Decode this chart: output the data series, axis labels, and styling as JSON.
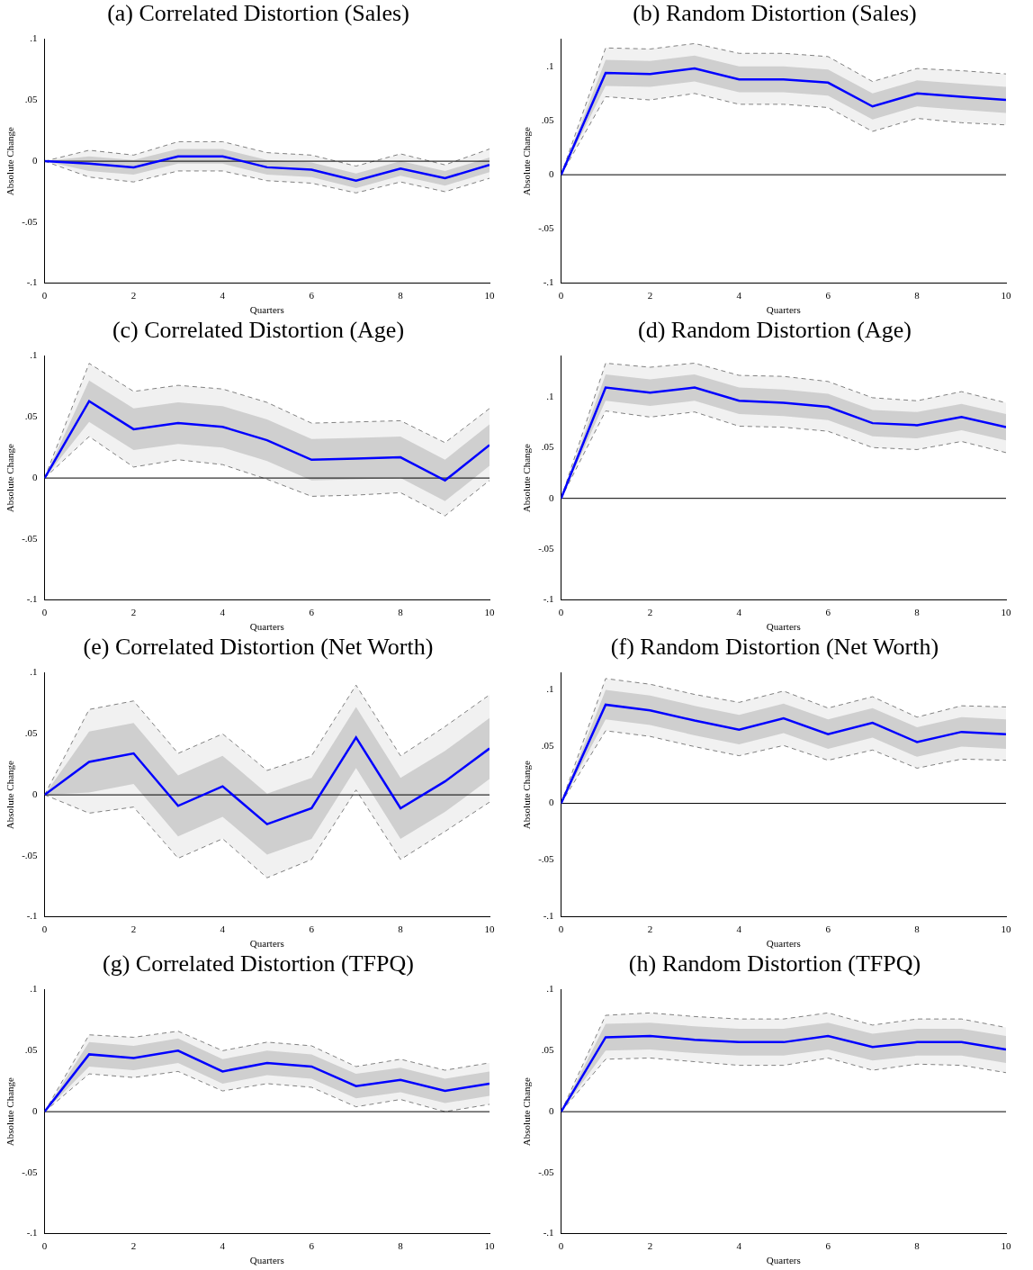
{
  "chart_data": [
    {
      "type": "line",
      "title": "(a) Correlated Distortion (Sales)",
      "xlabel": "Quarters",
      "ylabel": "Absolute Change",
      "x": [
        0,
        1,
        2,
        3,
        4,
        5,
        6,
        7,
        8,
        9,
        10
      ],
      "xlim": [
        0,
        10
      ],
      "xticks": [
        0,
        2,
        4,
        6,
        8,
        10
      ],
      "ylim": [
        -0.1,
        0.1
      ],
      "yticks": [
        {
          "value": -0.1,
          "label": "-.1"
        },
        {
          "value": -0.05,
          "label": "-.05"
        },
        {
          "value": 0,
          "label": "0"
        },
        {
          "value": 0.05,
          "label": ".05"
        },
        {
          "value": 0.1,
          "label": ".1"
        }
      ],
      "ref_lines": [
        {
          "axis": "y",
          "value": 0,
          "color": "#000000"
        }
      ],
      "series": [
        {
          "color": "#0000ff",
          "line_style": "solid",
          "values": [
            0,
            -0.002,
            -0.005,
            0.004,
            0.004,
            -0.005,
            -0.007,
            -0.016,
            -0.006,
            -0.014,
            -0.003
          ],
          "lower": [
            0,
            -0.008,
            -0.011,
            -0.002,
            -0.002,
            -0.011,
            -0.013,
            -0.022,
            -0.012,
            -0.02,
            -0.009
          ],
          "upper": [
            0,
            0.004,
            0.001,
            0.01,
            0.01,
            0.001,
            -0.001,
            -0.01,
            0,
            -0.008,
            0.003
          ]
        },
        {
          "color": "#f1f1f1",
          "values": [
            null,
            null,
            null,
            null,
            null,
            null,
            null,
            null,
            null,
            null,
            null
          ],
          "upper": [
            0,
            0.009,
            0.005,
            0.016,
            0.016,
            0.007,
            0.005,
            -0.004,
            0.006,
            -0.003,
            0.01
          ],
          "lower": [
            0,
            -0.013,
            -0.017,
            -0.008,
            -0.008,
            -0.016,
            -0.018,
            -0.026,
            -0.017,
            -0.025,
            -0.014
          ]
        },
        {
          "color": "#808080",
          "line_style": "dashed",
          "values": [
            0,
            0.009,
            0.005,
            0.016,
            0.016,
            0.007,
            0.005,
            -0.004,
            0.006,
            -0.003,
            0.01
          ]
        },
        {
          "color": "#808080",
          "line_style": "dashed",
          "values": [
            0,
            -0.013,
            -0.017,
            -0.008,
            -0.008,
            -0.016,
            -0.018,
            -0.026,
            -0.017,
            -0.025,
            -0.014
          ]
        }
      ]
    },
    {
      "type": "line",
      "title": "(b) Random Distortion (Sales)",
      "xlabel": "Quarters",
      "ylabel": "Absolute Change",
      "x": [
        0,
        1,
        2,
        3,
        4,
        5,
        6,
        7,
        8,
        9,
        10
      ],
      "xlim": [
        0,
        10
      ],
      "xticks": [
        0,
        2,
        4,
        6,
        8,
        10
      ],
      "ylim": [
        -0.1,
        0.125
      ],
      "yticks": [
        {
          "value": -0.1,
          "label": "-.1"
        },
        {
          "value": -0.05,
          "label": "-.05"
        },
        {
          "value": 0,
          "label": "0"
        },
        {
          "value": 0.05,
          "label": ".05"
        },
        {
          "value": 0.1,
          "label": ".1"
        }
      ],
      "ref_lines": [
        {
          "axis": "y",
          "value": 0,
          "color": "#000000"
        }
      ],
      "series": [
        {
          "color": "#0000ff",
          "line_style": "solid",
          "values": [
            0,
            0.094,
            0.093,
            0.098,
            0.088,
            0.088,
            0.085,
            0.063,
            0.075,
            0.072,
            0.069
          ],
          "lower": [
            0,
            0.082,
            0.081,
            0.086,
            0.076,
            0.076,
            0.073,
            0.051,
            0.063,
            0.06,
            0.057
          ],
          "upper": [
            0,
            0.106,
            0.105,
            0.11,
            0.1,
            0.1,
            0.097,
            0.075,
            0.087,
            0.084,
            0.081
          ]
        },
        {
          "color": "#f1f1f1",
          "values": [
            null,
            null,
            null,
            null,
            null,
            null,
            null,
            null,
            null,
            null,
            null
          ],
          "upper": [
            0,
            0.117,
            0.116,
            0.121,
            0.112,
            0.112,
            0.109,
            0.086,
            0.098,
            0.096,
            0.093
          ],
          "lower": [
            0,
            0.072,
            0.069,
            0.075,
            0.065,
            0.065,
            0.062,
            0.04,
            0.052,
            0.048,
            0.046
          ]
        },
        {
          "color": "#808080",
          "line_style": "dashed",
          "values": [
            0,
            0.117,
            0.116,
            0.121,
            0.112,
            0.112,
            0.109,
            0.086,
            0.098,
            0.096,
            0.093
          ]
        },
        {
          "color": "#808080",
          "line_style": "dashed",
          "values": [
            0,
            0.072,
            0.069,
            0.075,
            0.065,
            0.065,
            0.062,
            0.04,
            0.052,
            0.048,
            0.046
          ]
        }
      ]
    },
    {
      "type": "line",
      "title": "(c) Correlated Distortion (Age)",
      "xlabel": "Quarters",
      "ylabel": "Absolute Change",
      "x": [
        0,
        1,
        2,
        3,
        4,
        5,
        6,
        7,
        8,
        9,
        10
      ],
      "xlim": [
        0,
        10
      ],
      "xticks": [
        0,
        2,
        4,
        6,
        8,
        10
      ],
      "ylim": [
        -0.1,
        0.1
      ],
      "yticks": [
        {
          "value": -0.1,
          "label": "-.1"
        },
        {
          "value": -0.05,
          "label": "-.05"
        },
        {
          "value": 0,
          "label": "0"
        },
        {
          "value": 0.05,
          "label": ".05"
        },
        {
          "value": 0.1,
          "label": ".1"
        }
      ],
      "ref_lines": [
        {
          "axis": "y",
          "value": 0,
          "color": "#000000"
        }
      ],
      "series": [
        {
          "color": "#0000ff",
          "line_style": "solid",
          "values": [
            0,
            0.063,
            0.04,
            0.045,
            0.042,
            0.031,
            0.015,
            0.016,
            0.017,
            -0.002,
            0.027
          ],
          "lower": [
            0,
            0.046,
            0.023,
            0.028,
            0.025,
            0.014,
            -0.002,
            -0.001,
            0,
            -0.019,
            0.01
          ],
          "upper": [
            0,
            0.08,
            0.057,
            0.062,
            0.059,
            0.048,
            0.032,
            0.033,
            0.034,
            0.015,
            0.044
          ]
        },
        {
          "color": "#f1f1f1",
          "values": [
            null,
            null,
            null,
            null,
            null,
            null,
            null,
            null,
            null,
            null,
            null
          ],
          "upper": [
            0,
            0.094,
            0.071,
            0.076,
            0.073,
            0.062,
            0.045,
            0.046,
            0.047,
            0.029,
            0.057
          ],
          "lower": [
            0,
            0.034,
            0.009,
            0.015,
            0.011,
            -0.001,
            -0.015,
            -0.014,
            -0.012,
            -0.031,
            -0.002
          ]
        },
        {
          "color": "#808080",
          "line_style": "dashed",
          "values": [
            0,
            0.094,
            0.071,
            0.076,
            0.073,
            0.062,
            0.045,
            0.046,
            0.047,
            0.029,
            0.057
          ]
        },
        {
          "color": "#808080",
          "line_style": "dashed",
          "values": [
            0,
            0.034,
            0.009,
            0.015,
            0.011,
            -0.001,
            -0.015,
            -0.014,
            -0.012,
            -0.031,
            -0.002
          ]
        }
      ]
    },
    {
      "type": "line",
      "title": "(d) Random Distortion (Age)",
      "xlabel": "Quarters",
      "ylabel": "Absolute Change",
      "x": [
        0,
        1,
        2,
        3,
        4,
        5,
        6,
        7,
        8,
        9,
        10
      ],
      "xlim": [
        0,
        10
      ],
      "xticks": [
        0,
        2,
        4,
        6,
        8,
        10
      ],
      "ylim": [
        -0.1,
        0.14
      ],
      "yticks": [
        {
          "value": -0.1,
          "label": "-.1"
        },
        {
          "value": -0.05,
          "label": "-.05"
        },
        {
          "value": 0,
          "label": "0"
        },
        {
          "value": 0.05,
          "label": ".05"
        },
        {
          "value": 0.1,
          "label": ".1"
        }
      ],
      "ref_lines": [
        {
          "axis": "y",
          "value": 0,
          "color": "#000000"
        }
      ],
      "series": [
        {
          "color": "#0000ff",
          "line_style": "solid",
          "values": [
            0,
            0.109,
            0.104,
            0.109,
            0.096,
            0.094,
            0.09,
            0.074,
            0.072,
            0.08,
            0.07
          ],
          "lower": [
            0,
            0.096,
            0.091,
            0.096,
            0.083,
            0.081,
            0.077,
            0.061,
            0.059,
            0.067,
            0.057
          ],
          "upper": [
            0,
            0.122,
            0.117,
            0.122,
            0.109,
            0.107,
            0.103,
            0.087,
            0.085,
            0.093,
            0.083
          ]
        },
        {
          "color": "#f1f1f1",
          "values": [
            null,
            null,
            null,
            null,
            null,
            null,
            null,
            null,
            null,
            null,
            null
          ],
          "upper": [
            0,
            0.133,
            0.129,
            0.133,
            0.121,
            0.12,
            0.115,
            0.099,
            0.096,
            0.105,
            0.094
          ],
          "lower": [
            0,
            0.086,
            0.08,
            0.085,
            0.071,
            0.07,
            0.066,
            0.05,
            0.048,
            0.056,
            0.045
          ]
        },
        {
          "color": "#808080",
          "line_style": "dashed",
          "values": [
            0,
            0.133,
            0.129,
            0.133,
            0.121,
            0.12,
            0.115,
            0.099,
            0.096,
            0.105,
            0.094
          ]
        },
        {
          "color": "#808080",
          "line_style": "dashed",
          "values": [
            0,
            0.086,
            0.08,
            0.085,
            0.071,
            0.07,
            0.066,
            0.05,
            0.048,
            0.056,
            0.045
          ]
        }
      ]
    },
    {
      "type": "line",
      "title": "(e) Correlated Distortion (Net Worth)",
      "xlabel": "Quarters",
      "ylabel": "Absolute Change",
      "x": [
        0,
        1,
        2,
        3,
        4,
        5,
        6,
        7,
        8,
        9,
        10
      ],
      "xlim": [
        0,
        10
      ],
      "xticks": [
        0,
        2,
        4,
        6,
        8,
        10
      ],
      "ylim": [
        -0.1,
        0.1
      ],
      "yticks": [
        {
          "value": -0.1,
          "label": "-.1"
        },
        {
          "value": -0.05,
          "label": "-.05"
        },
        {
          "value": 0,
          "label": "0"
        },
        {
          "value": 0.05,
          "label": ".05"
        },
        {
          "value": 0.1,
          "label": ".1"
        }
      ],
      "ref_lines": [
        {
          "axis": "y",
          "value": 0,
          "color": "#000000"
        }
      ],
      "series": [
        {
          "color": "#0000ff",
          "line_style": "solid",
          "values": [
            0,
            0.027,
            0.034,
            -0.009,
            0.007,
            -0.024,
            -0.011,
            0.047,
            -0.011,
            0.011,
            0.038
          ],
          "lower": [
            0,
            0.002,
            0.009,
            -0.034,
            -0.018,
            -0.049,
            -0.036,
            0.022,
            -0.036,
            -0.014,
            0.013
          ],
          "upper": [
            0,
            0.052,
            0.059,
            0.016,
            0.032,
            0.001,
            0.014,
            0.072,
            0.014,
            0.036,
            0.063
          ]
        },
        {
          "color": "#f1f1f1",
          "values": [
            null,
            null,
            null,
            null,
            null,
            null,
            null,
            null,
            null,
            null,
            null
          ],
          "upper": [
            0,
            0.07,
            0.077,
            0.034,
            0.05,
            0.02,
            0.032,
            0.09,
            0.032,
            0.056,
            0.082
          ],
          "lower": [
            0,
            -0.015,
            -0.01,
            -0.052,
            -0.036,
            -0.068,
            -0.053,
            0.004,
            -0.053,
            -0.03,
            -0.006
          ]
        },
        {
          "color": "#808080",
          "line_style": "dashed",
          "values": [
            0,
            0.07,
            0.077,
            0.034,
            0.05,
            0.02,
            0.032,
            0.09,
            0.032,
            0.056,
            0.082
          ]
        },
        {
          "color": "#808080",
          "line_style": "dashed",
          "values": [
            0,
            -0.015,
            -0.01,
            -0.052,
            -0.036,
            -0.068,
            -0.053,
            0.004,
            -0.053,
            -0.03,
            -0.006
          ]
        }
      ]
    },
    {
      "type": "line",
      "title": "(f) Random Distortion (Net Worth)",
      "xlabel": "Quarters",
      "ylabel": "Absolute Change",
      "x": [
        0,
        1,
        2,
        3,
        4,
        5,
        6,
        7,
        8,
        9,
        10
      ],
      "xlim": [
        0,
        10
      ],
      "xticks": [
        0,
        2,
        4,
        6,
        8,
        10
      ],
      "ylim": [
        -0.1,
        0.115
      ],
      "yticks": [
        {
          "value": -0.1,
          "label": "-.1"
        },
        {
          "value": -0.05,
          "label": "-.05"
        },
        {
          "value": 0,
          "label": "0"
        },
        {
          "value": 0.05,
          "label": ".05"
        },
        {
          "value": 0.1,
          "label": ".1"
        }
      ],
      "ref_lines": [
        {
          "axis": "y",
          "value": 0,
          "color": "#000000"
        }
      ],
      "series": [
        {
          "color": "#0000ff",
          "line_style": "solid",
          "values": [
            0,
            0.087,
            0.082,
            0.073,
            0.065,
            0.075,
            0.061,
            0.071,
            0.054,
            0.063,
            0.061
          ],
          "lower": [
            0,
            0.074,
            0.069,
            0.06,
            0.052,
            0.062,
            0.048,
            0.058,
            0.041,
            0.05,
            0.048
          ],
          "upper": [
            0,
            0.1,
            0.095,
            0.086,
            0.078,
            0.088,
            0.074,
            0.084,
            0.067,
            0.076,
            0.074
          ]
        },
        {
          "color": "#f1f1f1",
          "values": [
            null,
            null,
            null,
            null,
            null,
            null,
            null,
            null,
            null,
            null,
            null
          ],
          "upper": [
            0,
            0.11,
            0.105,
            0.096,
            0.089,
            0.099,
            0.084,
            0.094,
            0.076,
            0.086,
            0.085
          ],
          "lower": [
            0,
            0.064,
            0.059,
            0.05,
            0.042,
            0.051,
            0.038,
            0.047,
            0.031,
            0.039,
            0.038
          ]
        },
        {
          "color": "#808080",
          "line_style": "dashed",
          "values": [
            0,
            0.11,
            0.105,
            0.096,
            0.089,
            0.099,
            0.084,
            0.094,
            0.076,
            0.086,
            0.085
          ]
        },
        {
          "color": "#808080",
          "line_style": "dashed",
          "values": [
            0,
            0.064,
            0.059,
            0.05,
            0.042,
            0.051,
            0.038,
            0.047,
            0.031,
            0.039,
            0.038
          ]
        }
      ]
    },
    {
      "type": "line",
      "title": "(g) Correlated Distortion (TFPQ)",
      "xlabel": "Quarters",
      "ylabel": "Absolute Change",
      "x": [
        0,
        1,
        2,
        3,
        4,
        5,
        6,
        7,
        8,
        9,
        10
      ],
      "xlim": [
        0,
        10
      ],
      "xticks": [
        0,
        2,
        4,
        6,
        8,
        10
      ],
      "ylim": [
        -0.1,
        0.1
      ],
      "yticks": [
        {
          "value": -0.1,
          "label": "-.1"
        },
        {
          "value": -0.05,
          "label": "-.05"
        },
        {
          "value": 0,
          "label": "0"
        },
        {
          "value": 0.05,
          "label": ".05"
        },
        {
          "value": 0.1,
          "label": ".1"
        }
      ],
      "ref_lines": [
        {
          "axis": "y",
          "value": 0,
          "color": "#000000"
        }
      ],
      "series": [
        {
          "color": "#0000ff",
          "line_style": "solid",
          "values": [
            0,
            0.047,
            0.044,
            0.05,
            0.033,
            0.04,
            0.037,
            0.021,
            0.026,
            0.017,
            0.023
          ],
          "lower": [
            0,
            0.037,
            0.034,
            0.04,
            0.023,
            0.03,
            0.027,
            0.011,
            0.016,
            0.007,
            0.013
          ],
          "upper": [
            0,
            0.057,
            0.054,
            0.06,
            0.043,
            0.05,
            0.047,
            0.031,
            0.036,
            0.027,
            0.033
          ]
        },
        {
          "color": "#f1f1f1",
          "values": [
            null,
            null,
            null,
            null,
            null,
            null,
            null,
            null,
            null,
            null,
            null
          ],
          "upper": [
            0,
            0.063,
            0.061,
            0.066,
            0.05,
            0.057,
            0.054,
            0.037,
            0.043,
            0.034,
            0.04
          ],
          "lower": [
            0,
            0.031,
            0.028,
            0.033,
            0.017,
            0.023,
            0.02,
            0.004,
            0.01,
            0,
            0.006
          ]
        },
        {
          "color": "#808080",
          "line_style": "dashed",
          "values": [
            0,
            0.063,
            0.061,
            0.066,
            0.05,
            0.057,
            0.054,
            0.037,
            0.043,
            0.034,
            0.04
          ]
        },
        {
          "color": "#808080",
          "line_style": "dashed",
          "values": [
            0,
            0.031,
            0.028,
            0.033,
            0.017,
            0.023,
            0.02,
            0.004,
            0.01,
            0,
            0.006
          ]
        }
      ]
    },
    {
      "type": "line",
      "title": "(h) Random Distortion (TFPQ)",
      "xlabel": "Quarters",
      "ylabel": "Absolute Change",
      "x": [
        0,
        1,
        2,
        3,
        4,
        5,
        6,
        7,
        8,
        9,
        10
      ],
      "xlim": [
        0,
        10
      ],
      "xticks": [
        0,
        2,
        4,
        6,
        8,
        10
      ],
      "ylim": [
        -0.1,
        0.1
      ],
      "yticks": [
        {
          "value": -0.1,
          "label": "-.1"
        },
        {
          "value": -0.05,
          "label": "-.05"
        },
        {
          "value": 0,
          "label": "0"
        },
        {
          "value": 0.05,
          "label": ".05"
        },
        {
          "value": 0.1,
          "label": ".1"
        }
      ],
      "ref_lines": [
        {
          "axis": "y",
          "value": 0,
          "color": "#000000"
        }
      ],
      "series": [
        {
          "color": "#0000ff",
          "line_style": "solid",
          "values": [
            0,
            0.061,
            0.062,
            0.059,
            0.057,
            0.057,
            0.062,
            0.053,
            0.057,
            0.057,
            0.051
          ],
          "lower": [
            0,
            0.05,
            0.051,
            0.048,
            0.046,
            0.046,
            0.051,
            0.042,
            0.046,
            0.046,
            0.04
          ],
          "upper": [
            0,
            0.072,
            0.073,
            0.07,
            0.068,
            0.068,
            0.073,
            0.064,
            0.068,
            0.068,
            0.062
          ]
        },
        {
          "color": "#f1f1f1",
          "values": [
            null,
            null,
            null,
            null,
            null,
            null,
            null,
            null,
            null,
            null,
            null
          ],
          "upper": [
            0,
            0.079,
            0.081,
            0.078,
            0.076,
            0.076,
            0.081,
            0.071,
            0.076,
            0.076,
            0.069
          ],
          "lower": [
            0,
            0.043,
            0.044,
            0.041,
            0.038,
            0.038,
            0.044,
            0.034,
            0.039,
            0.038,
            0.032
          ]
        },
        {
          "color": "#808080",
          "line_style": "dashed",
          "values": [
            0,
            0.079,
            0.081,
            0.078,
            0.076,
            0.076,
            0.081,
            0.071,
            0.076,
            0.076,
            0.069
          ]
        },
        {
          "color": "#808080",
          "line_style": "dashed",
          "values": [
            0,
            0.043,
            0.044,
            0.041,
            0.038,
            0.038,
            0.044,
            0.034,
            0.039,
            0.038,
            0.032
          ]
        }
      ]
    }
  ]
}
